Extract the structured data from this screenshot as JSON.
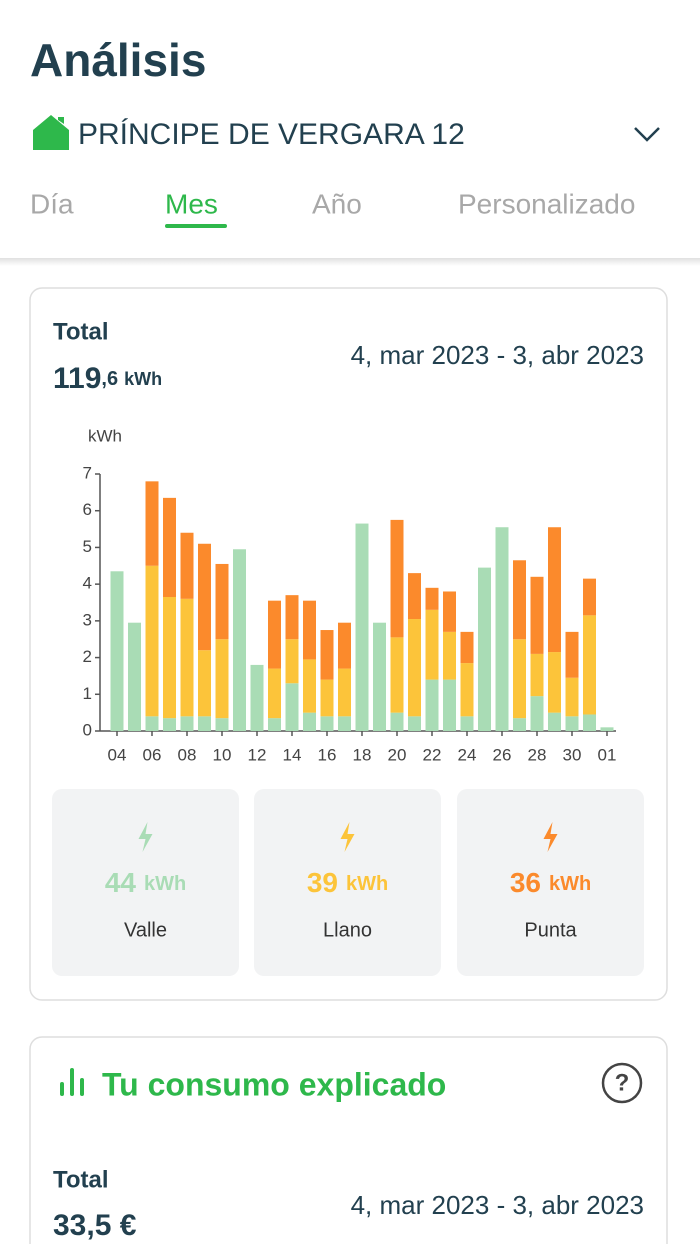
{
  "header": {
    "title": "Análisis",
    "address": "PRÍNCIPE DE VERGARA 12",
    "tabs": [
      "Día",
      "Mes",
      "Año",
      "Personalizado"
    ]
  },
  "summary": {
    "label": "Total",
    "value_main": "119",
    "value_decimal": ",6",
    "unit": "kWh",
    "date_range": "4, mar 2023 - 3, abr 2023"
  },
  "chart_data": {
    "type": "stacked-bar",
    "y_label": "kWh",
    "categories": [
      "04",
      null,
      "06",
      null,
      "08",
      null,
      "10",
      null,
      "12",
      null,
      "14",
      null,
      "16",
      null,
      "18",
      null,
      "20",
      null,
      "22",
      null,
      "24",
      null,
      "26",
      null,
      "28",
      null,
      "30",
      null,
      "01"
    ],
    "series": [
      {
        "name": "Valle",
        "color": "#a9dcb5",
        "values": [
          4.35,
          2.95,
          0.4,
          0.35,
          0.4,
          0.4,
          0.35,
          4.95,
          1.8,
          0.35,
          1.3,
          0.5,
          0.4,
          0.4,
          5.65,
          2.95,
          0.5,
          0.4,
          1.4,
          1.4,
          0.4,
          4.45,
          5.55,
          0.35,
          0.95,
          0.5,
          0.4,
          0.45,
          0.1
        ]
      },
      {
        "name": "Llano",
        "color": "#fcc43a",
        "values": [
          0,
          0,
          4.1,
          3.3,
          3.2,
          1.8,
          2.15,
          0,
          0,
          1.35,
          1.2,
          1.45,
          1.0,
          1.3,
          0,
          0,
          2.05,
          2.65,
          1.9,
          1.3,
          1.45,
          0,
          0,
          2.15,
          1.15,
          1.65,
          1.05,
          2.7,
          0
        ]
      },
      {
        "name": "Punta",
        "color": "#fb8a2c",
        "values": [
          0,
          0,
          2.3,
          2.7,
          1.8,
          2.9,
          2.05,
          0,
          0,
          1.85,
          1.2,
          1.6,
          1.35,
          1.25,
          0,
          0,
          3.2,
          1.25,
          0.6,
          1.1,
          0.85,
          0,
          0,
          2.15,
          2.1,
          3.4,
          1.25,
          1.0,
          0
        ]
      }
    ],
    "ylim": [
      0,
      7
    ],
    "yticks": [
      0,
      1,
      2,
      3,
      4,
      5,
      6,
      7
    ]
  },
  "breakdown": [
    {
      "value": 44,
      "unit": "kWh"
    },
    {
      "value": 39,
      "unit": "kWh"
    },
    {
      "value": 36,
      "unit": "kWh"
    }
  ],
  "explained": {
    "title": "Tu consumo explicado",
    "label": "Total",
    "value": "33,5 €",
    "date_range": "4, mar 2023 - 3, abr 2023"
  }
}
